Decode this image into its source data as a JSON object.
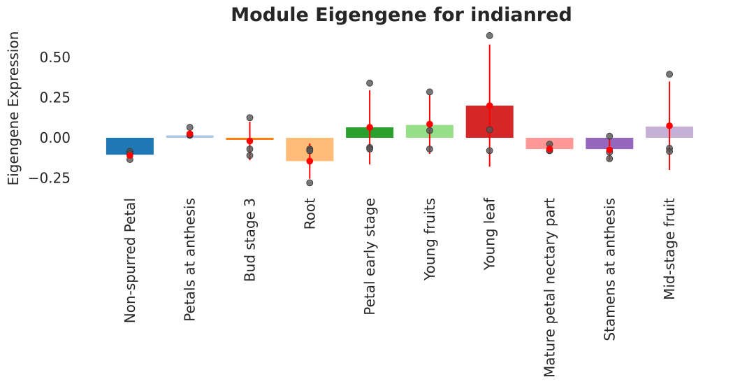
{
  "chart_data": {
    "type": "bar",
    "title": "Module Eigengene for indianred",
    "xlabel": "",
    "ylabel": "Eigengene Expression",
    "ylim": [
      -0.33,
      0.65
    ],
    "yticks": [
      -0.25,
      0.0,
      0.25,
      0.5
    ],
    "ytick_labels": [
      "−0.25",
      "0.00",
      "0.25",
      "0.50"
    ],
    "grid": false,
    "categories": [
      "Non-spurred Petal",
      "Petals at anthesis",
      "Bud stage 3",
      "Root",
      "Petal early stage",
      "Young fruits",
      "Young leaf",
      "Mature petal nectary part",
      "Stamens at anthesis",
      "Mid-stage fruit"
    ],
    "colors": [
      "#1f77b4",
      "#aec7e8",
      "#ff7f0e",
      "#ffbb78",
      "#2ca02c",
      "#98df8a",
      "#d62728",
      "#ff9896",
      "#9467bd",
      "#c5b0d5"
    ],
    "values": [
      -0.105,
      0.015,
      -0.01,
      -0.145,
      0.065,
      0.08,
      0.2,
      -0.07,
      -0.07,
      0.07
    ],
    "means": [
      -0.11,
      0.025,
      -0.02,
      -0.145,
      0.065,
      0.085,
      0.2,
      -0.07,
      -0.075,
      0.075
    ],
    "errors": [
      0.02,
      0.02,
      0.12,
      0.11,
      0.23,
      0.185,
      0.38,
      0.03,
      0.065,
      0.275
    ],
    "samples": [
      [
        -0.085,
        -0.1,
        -0.135
      ],
      [
        0.065,
        0.015,
        0.02
      ],
      [
        0.125,
        -0.07,
        -0.11
      ],
      [
        -0.07,
        -0.08,
        -0.28
      ],
      [
        0.34,
        -0.06,
        -0.07
      ],
      [
        0.285,
        0.045,
        -0.07
      ],
      [
        0.635,
        0.05,
        -0.08
      ],
      [
        -0.04,
        -0.08,
        -0.08
      ],
      [
        0.01,
        -0.09,
        -0.13
      ],
      [
        0.395,
        -0.065,
        -0.085
      ]
    ],
    "point_color": "#ff0000",
    "sample_color": "#555555"
  }
}
